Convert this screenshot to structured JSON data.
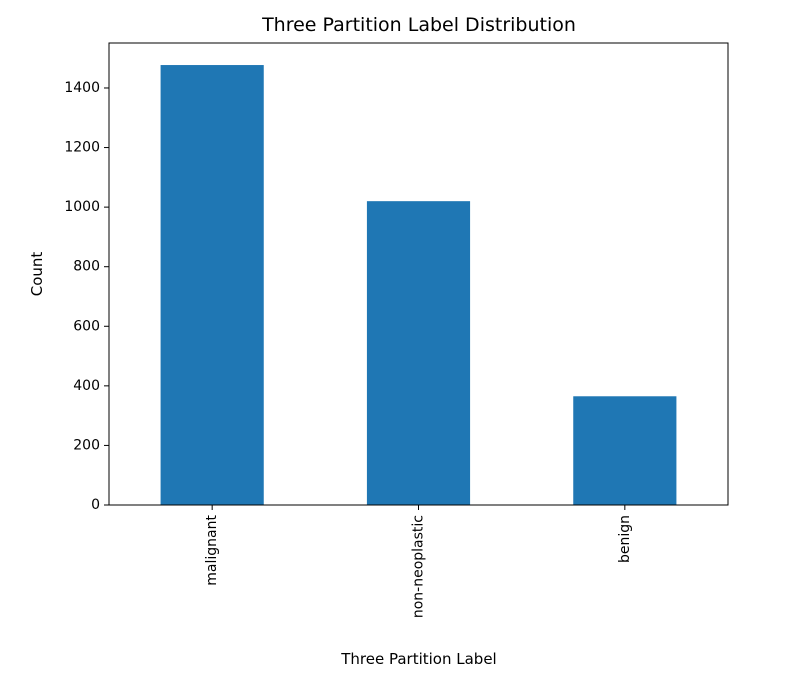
{
  "chart_data": {
    "type": "bar",
    "title": "Three Partition Label Distribution",
    "xlabel": "Three Partition Label",
    "ylabel": "Count",
    "categories": [
      "malignant",
      "non-neoplastic",
      "benign"
    ],
    "values": [
      1477,
      1020,
      365
    ],
    "ylim": [
      0,
      1551
    ],
    "yticks": [
      0,
      200,
      400,
      600,
      800,
      1000,
      1200,
      1400
    ],
    "bar_color": "#1f77b4",
    "grid": false,
    "legend": "none"
  }
}
